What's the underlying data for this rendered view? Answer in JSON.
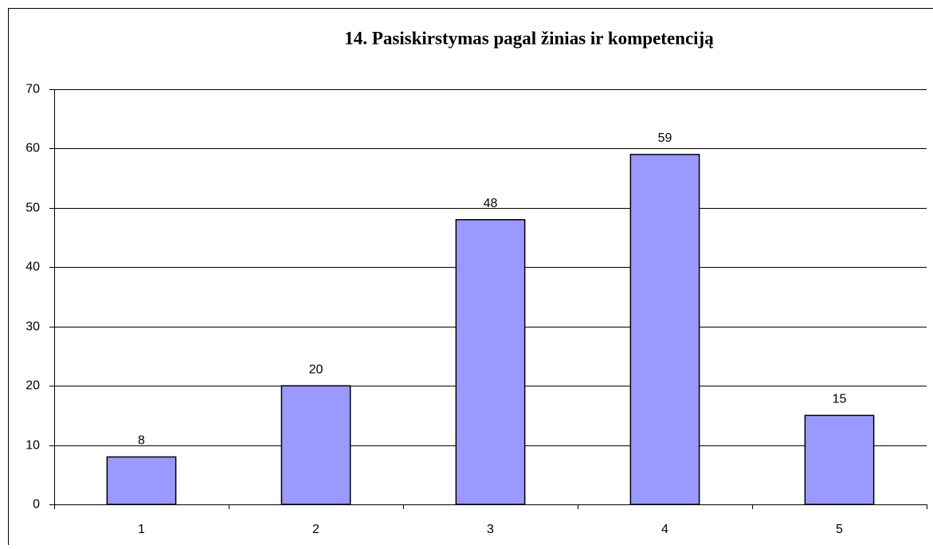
{
  "chart_data": {
    "type": "bar",
    "title": "14. Pasiskirstymas pagal žinias ir kompetenciją",
    "categories": [
      "1",
      "2",
      "3",
      "4",
      "5"
    ],
    "values": [
      8,
      20,
      48,
      59,
      15
    ],
    "color": "#9999ff",
    "ylim": [
      0,
      70
    ],
    "yticks": [
      0,
      10,
      20,
      30,
      40,
      50,
      60,
      70
    ],
    "grid": true
  }
}
